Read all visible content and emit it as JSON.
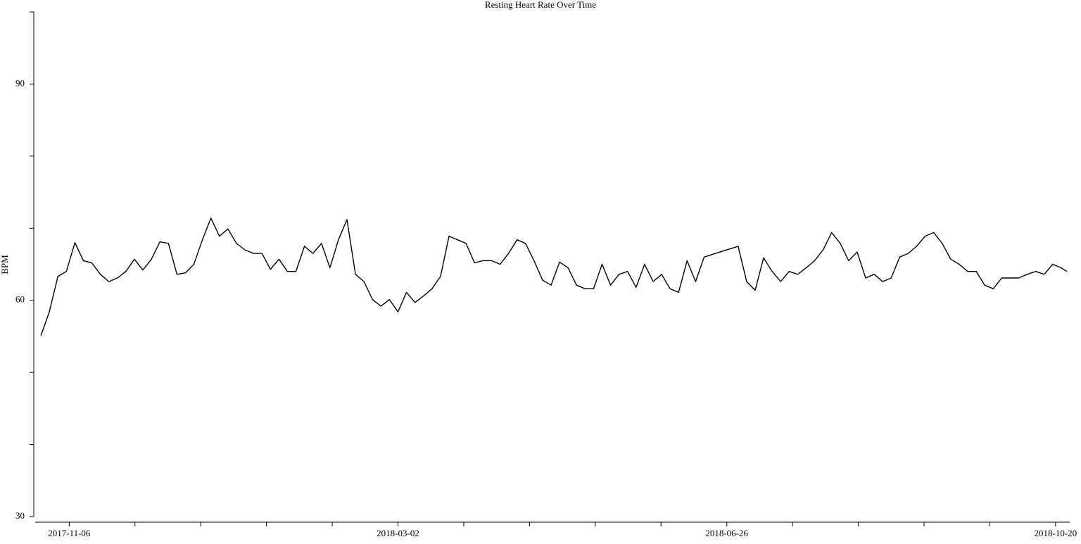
{
  "chart_data": {
    "type": "line",
    "title": "Resting Heart Rate Over Time",
    "ylabel": "BPM",
    "x": [
      "2017-10-27",
      "2017-10-30",
      "2017-11-02",
      "2017-11-05",
      "2017-11-08",
      "2017-11-11",
      "2017-11-14",
      "2017-11-17",
      "2017-11-20",
      "2017-11-23",
      "2017-11-26",
      "2017-11-29",
      "2017-12-02",
      "2017-12-05",
      "2017-12-08",
      "2017-12-11",
      "2017-12-14",
      "2017-12-17",
      "2017-12-20",
      "2017-12-23",
      "2017-12-26",
      "2017-12-29",
      "2018-01-01",
      "2018-01-04",
      "2018-01-07",
      "2018-01-10",
      "2018-01-13",
      "2018-01-16",
      "2018-01-19",
      "2018-01-22",
      "2018-01-25",
      "2018-01-28",
      "2018-01-31",
      "2018-02-03",
      "2018-02-06",
      "2018-02-09",
      "2018-02-12",
      "2018-02-15",
      "2018-02-18",
      "2018-02-21",
      "2018-02-24",
      "2018-02-27",
      "2018-03-02",
      "2018-03-05",
      "2018-03-08",
      "2018-03-11",
      "2018-03-14",
      "2018-03-17",
      "2018-03-20",
      "2018-03-23",
      "2018-03-26",
      "2018-03-29",
      "2018-04-01",
      "2018-04-04",
      "2018-04-07",
      "2018-04-10",
      "2018-04-13",
      "2018-04-16",
      "2018-04-19",
      "2018-04-22",
      "2018-04-25",
      "2018-04-28",
      "2018-05-01",
      "2018-05-04",
      "2018-05-07",
      "2018-05-10",
      "2018-05-13",
      "2018-05-16",
      "2018-05-19",
      "2018-05-22",
      "2018-05-25",
      "2018-05-28",
      "2018-05-31",
      "2018-06-03",
      "2018-06-06",
      "2018-06-09",
      "2018-06-12",
      "2018-06-15",
      "2018-06-18",
      "2018-06-30",
      "2018-07-03",
      "2018-07-06",
      "2018-07-09",
      "2018-07-12",
      "2018-07-15",
      "2018-07-18",
      "2018-07-21",
      "2018-07-24",
      "2018-07-27",
      "2018-07-30",
      "2018-08-02",
      "2018-08-05",
      "2018-08-08",
      "2018-08-11",
      "2018-08-14",
      "2018-08-17",
      "2018-08-20",
      "2018-08-23",
      "2018-08-26",
      "2018-08-29",
      "2018-09-01",
      "2018-09-04",
      "2018-09-07",
      "2018-09-10",
      "2018-09-13",
      "2018-09-16",
      "2018-09-19",
      "2018-09-22",
      "2018-09-25",
      "2018-09-28",
      "2018-10-01",
      "2018-10-04",
      "2018-10-07",
      "2018-10-10",
      "2018-10-13",
      "2018-10-16",
      "2018-10-19",
      "2018-10-22",
      "2018-10-24"
    ],
    "series": [
      {
        "name": "BPM",
        "color": "#000000",
        "values": [
          55.1,
          58.4,
          63.3,
          64.0,
          68.0,
          65.5,
          65.2,
          63.6,
          62.6,
          63.1,
          64.0,
          65.7,
          64.2,
          65.7,
          68.1,
          67.9,
          63.6,
          63.8,
          65.0,
          68.4,
          71.4,
          68.9,
          69.9,
          67.9,
          67.0,
          66.5,
          66.5,
          64.3,
          65.7,
          64.0,
          64.0,
          67.5,
          66.5,
          67.9,
          64.5,
          68.4,
          71.2,
          63.6,
          62.6,
          60.1,
          59.2,
          60.1,
          58.4,
          61.1,
          59.7,
          60.6,
          61.6,
          63.3,
          68.9,
          68.4,
          67.9,
          65.2,
          65.5,
          65.5,
          65.0,
          66.5,
          68.4,
          67.9,
          65.5,
          62.8,
          62.1,
          65.3,
          64.5,
          62.1,
          61.6,
          61.6,
          65.0,
          62.1,
          63.6,
          64.0,
          61.8,
          65.0,
          62.6,
          63.6,
          61.6,
          61.1,
          65.5,
          62.6,
          66.0,
          67.5,
          62.6,
          61.4,
          65.9,
          64.0,
          62.6,
          64.0,
          63.6,
          64.5,
          65.5,
          67.0,
          69.4,
          67.9,
          65.5,
          66.7,
          63.1,
          63.6,
          62.6,
          63.1,
          66.0,
          66.5,
          67.5,
          68.9,
          69.4,
          67.9,
          65.7,
          65.0,
          64.0,
          64.0,
          62.1,
          61.6,
          63.1,
          63.1,
          63.1,
          63.6,
          64.0,
          63.6,
          65.0,
          64.5,
          64.0
        ]
      }
    ],
    "xlim": [
      "2017-10-25",
      "2018-10-25"
    ],
    "xticks": [
      "2017-11-06",
      "2018-03-02",
      "2018-06-26",
      "2018-10-20"
    ],
    "ylim": [
      30,
      100
    ],
    "yticks": [
      30,
      60,
      90
    ],
    "grid": false
  }
}
